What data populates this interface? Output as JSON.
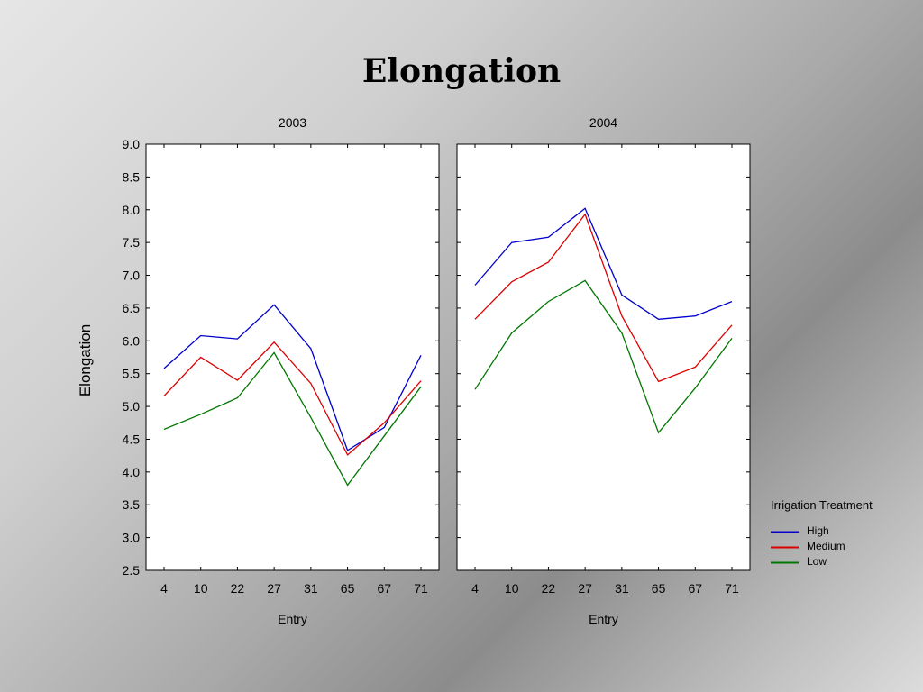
{
  "title": "Elongation",
  "chart_data": {
    "type": "line",
    "ylabel": "Elongation",
    "xlabel": "Entry",
    "ylim": [
      2.5,
      9.0
    ],
    "yticks": [
      "2.5",
      "3.0",
      "3.5",
      "4.0",
      "4.5",
      "5.0",
      "5.5",
      "6.0",
      "6.5",
      "7.0",
      "7.5",
      "8.0",
      "8.5",
      "9.0"
    ],
    "categories": [
      "4",
      "10",
      "22",
      "27",
      "31",
      "65",
      "67",
      "71"
    ],
    "legend": {
      "title": "Irrigation Treatment",
      "placement": "right"
    },
    "panels": [
      {
        "title": "2003",
        "series": [
          {
            "name": "High",
            "color": "#0000cc",
            "values": [
              5.58,
              6.08,
              6.03,
              6.55,
              5.88,
              4.33,
              4.68,
              5.78
            ]
          },
          {
            "name": "Medium",
            "color": "#dd0000",
            "values": [
              5.16,
              5.75,
              5.4,
              5.98,
              5.35,
              4.26,
              4.75,
              5.39
            ]
          },
          {
            "name": "Low",
            "color": "#007700",
            "values": [
              4.65,
              4.88,
              5.13,
              5.82,
              4.83,
              3.8,
              4.55,
              5.3
            ]
          }
        ]
      },
      {
        "title": "2004",
        "series": [
          {
            "name": "High",
            "color": "#0000cc",
            "values": [
              6.85,
              7.5,
              7.58,
              8.02,
              6.7,
              6.33,
              6.38,
              6.6
            ]
          },
          {
            "name": "Medium",
            "color": "#dd0000",
            "values": [
              6.33,
              6.9,
              7.2,
              7.93,
              6.38,
              5.38,
              5.6,
              6.24
            ]
          },
          {
            "name": "Low",
            "color": "#007700",
            "values": [
              5.26,
              6.12,
              6.6,
              6.92,
              6.12,
              4.6,
              5.28,
              6.04
            ]
          }
        ]
      }
    ]
  }
}
